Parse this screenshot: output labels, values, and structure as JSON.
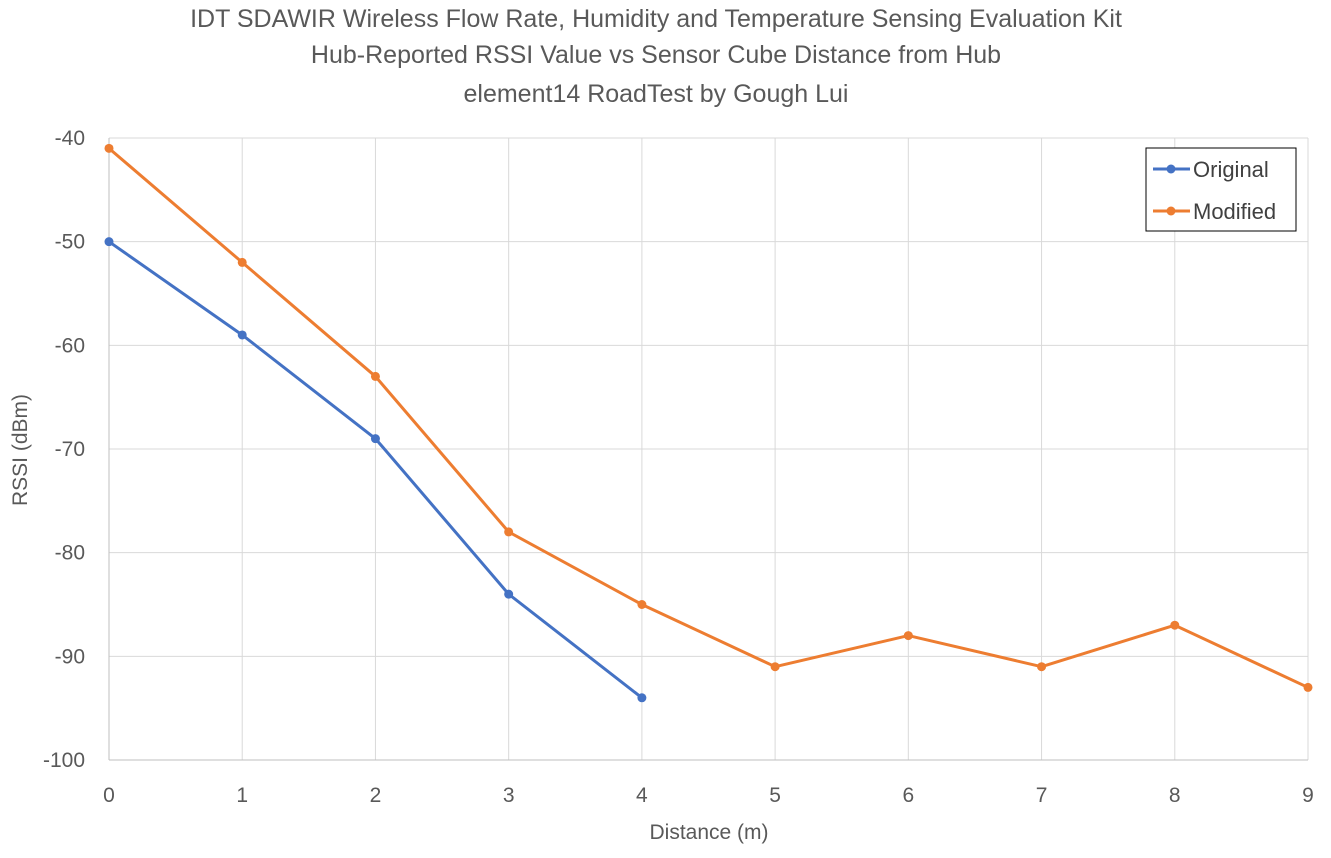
{
  "chart_data": {
    "type": "line",
    "title_lines": [
      "IDT SDAWIR Wireless Flow Rate, Humidity and Temperature Sensing Evaluation Kit",
      "Hub-Reported RSSI Value vs Sensor Cube Distance from Hub",
      "element14 RoadTest by Gough Lui"
    ],
    "xlabel": "Distance (m)",
    "ylabel": "RSSI (dBm)",
    "xlim": [
      0,
      9
    ],
    "ylim": [
      -100,
      -40
    ],
    "x_ticks": [
      0,
      1,
      2,
      3,
      4,
      5,
      6,
      7,
      8,
      9
    ],
    "y_ticks": [
      -40,
      -50,
      -60,
      -70,
      -80,
      -90,
      -100
    ],
    "grid": true,
    "legend_position": "top-right",
    "series": [
      {
        "name": "Original",
        "color": "#4472c4",
        "x": [
          0,
          1,
          2,
          3,
          4
        ],
        "values": [
          -50,
          -59,
          -69,
          -84,
          -94
        ]
      },
      {
        "name": "Modified",
        "color": "#ed7d31",
        "x": [
          0,
          1,
          2,
          3,
          4,
          5,
          6,
          7,
          8,
          9
        ],
        "values": [
          -41,
          -52,
          -63,
          -78,
          -85,
          -91,
          -88,
          -91,
          -87,
          -93
        ]
      }
    ]
  }
}
